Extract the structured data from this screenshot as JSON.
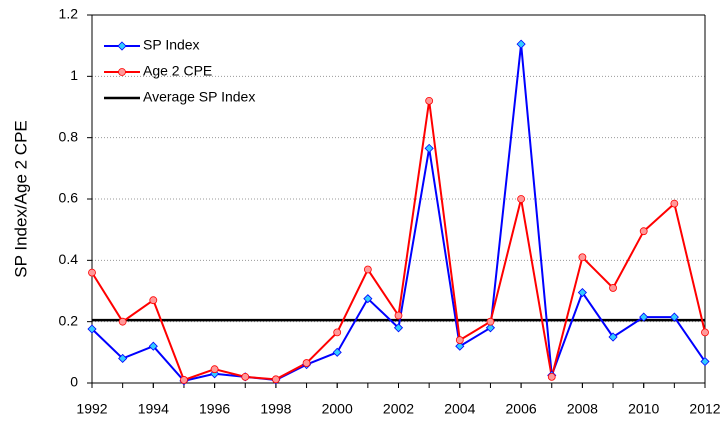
{
  "chart_data": {
    "type": "line",
    "y_label": "SP Index/Age 2 CPE",
    "x": [
      1992,
      1993,
      1994,
      1995,
      1996,
      1997,
      1998,
      1999,
      2000,
      2001,
      2002,
      2003,
      2004,
      2005,
      2006,
      2007,
      2008,
      2009,
      2010,
      2011,
      2012
    ],
    "series": [
      {
        "name": "SP Index",
        "color": "#0000ff",
        "marker": "diamond",
        "marker_fill": "#33ccff",
        "values": [
          0.176,
          0.08,
          0.12,
          0.007,
          0.03,
          0.02,
          0.01,
          0.06,
          0.1,
          0.275,
          0.18,
          0.765,
          0.12,
          0.18,
          1.105,
          0.025,
          0.295,
          0.15,
          0.215,
          0.215,
          0.07
        ]
      },
      {
        "name": "Age 2 CPE",
        "color": "#ff0000",
        "marker": "circle",
        "marker_fill": "#ff9999",
        "values": [
          0.36,
          0.2,
          0.27,
          0.01,
          0.045,
          0.02,
          0.012,
          0.065,
          0.165,
          0.37,
          0.22,
          0.92,
          0.14,
          0.2,
          0.6,
          0.02,
          0.41,
          0.31,
          0.495,
          0.585,
          0.165
        ]
      }
    ],
    "reference_line": {
      "name": "Average SP Index",
      "color": "#000000",
      "value": 0.205
    },
    "xlim": [
      1992,
      2012
    ],
    "xticks": [
      1992,
      1994,
      1996,
      1998,
      2000,
      2002,
      2004,
      2006,
      2008,
      2010,
      2012
    ],
    "ylim": [
      0,
      1.2
    ],
    "yticks": [
      0,
      0.2,
      0.4,
      0.6,
      0.8,
      1,
      1.2
    ],
    "grid": true,
    "legend": "top-left"
  }
}
